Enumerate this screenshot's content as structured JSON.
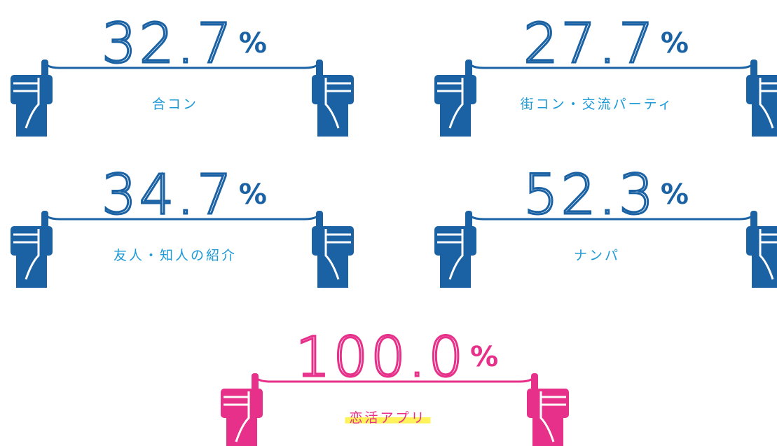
{
  "items": [
    {
      "value": "32.7",
      "unit": "%",
      "label": "合コン"
    },
    {
      "value": "27.7",
      "unit": "%",
      "label": "街コン・交流パーティ"
    },
    {
      "value": "34.7",
      "unit": "%",
      "label": "友人・知人の紹介"
    },
    {
      "value": "52.3",
      "unit": "%",
      "label": "ナンパ"
    },
    {
      "value": "100.0",
      "unit": "%",
      "label": "恋活アプリ"
    }
  ]
}
